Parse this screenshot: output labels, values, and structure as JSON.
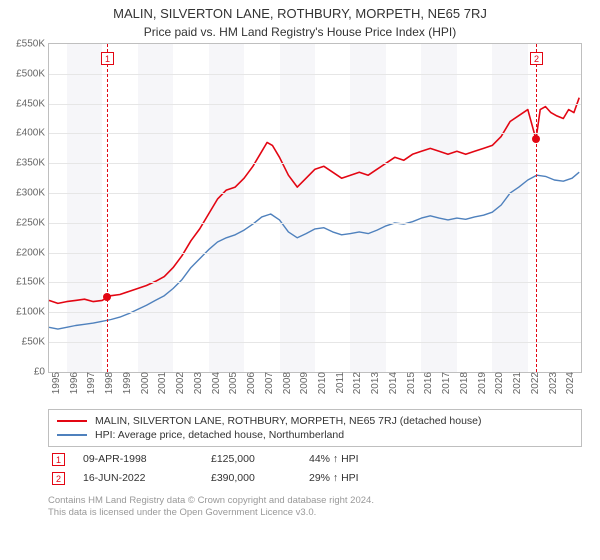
{
  "title": "MALIN, SILVERTON LANE, ROTHBURY, MORPETH, NE65 7RJ",
  "subtitle": "Price paid vs. HM Land Registry's House Price Index (HPI)",
  "title_fontsize": 13,
  "subtitle_fontsize": 12,
  "chart": {
    "type": "line",
    "background_color": "#ffffff",
    "plot_band_color": "#f6f6f9",
    "grid_color": "#e6e6e6",
    "axis_color": "#bfbfbf",
    "tick_label_color": "#666666",
    "tick_fontsize": 10,
    "x_years": [
      1995,
      1996,
      1997,
      1998,
      1999,
      2000,
      2001,
      2002,
      2003,
      2004,
      2005,
      2006,
      2007,
      2008,
      2009,
      2010,
      2011,
      2012,
      2013,
      2014,
      2015,
      2016,
      2017,
      2018,
      2019,
      2020,
      2021,
      2022,
      2023,
      2024
    ],
    "x_min": 1995,
    "x_max": 2025,
    "y_min": 0,
    "y_max": 550,
    "y_ticks": [
      0,
      50,
      100,
      150,
      200,
      250,
      300,
      350,
      400,
      450,
      500,
      550
    ],
    "y_tick_labels": [
      "£0",
      "£50K",
      "£100K",
      "£150K",
      "£200K",
      "£250K",
      "£300K",
      "£350K",
      "£400K",
      "£450K",
      "£500K",
      "£550K"
    ],
    "series": [
      {
        "name": "property",
        "label": "MALIN, SILVERTON LANE, ROTHBURY, MORPETH, NE65 7RJ (detached house)",
        "color": "#e30613",
        "line_width": 1.6,
        "points": [
          [
            1995.0,
            120
          ],
          [
            1995.5,
            115
          ],
          [
            1996.0,
            118
          ],
          [
            1996.5,
            120
          ],
          [
            1997.0,
            122
          ],
          [
            1997.5,
            118
          ],
          [
            1998.0,
            120
          ],
          [
            1998.27,
            125
          ],
          [
            1998.5,
            128
          ],
          [
            1999.0,
            130
          ],
          [
            1999.5,
            135
          ],
          [
            2000.0,
            140
          ],
          [
            2000.5,
            145
          ],
          [
            2001.0,
            152
          ],
          [
            2001.5,
            160
          ],
          [
            2002.0,
            175
          ],
          [
            2002.5,
            195
          ],
          [
            2003.0,
            220
          ],
          [
            2003.5,
            240
          ],
          [
            2004.0,
            265
          ],
          [
            2004.5,
            290
          ],
          [
            2005.0,
            305
          ],
          [
            2005.5,
            310
          ],
          [
            2006.0,
            325
          ],
          [
            2006.5,
            345
          ],
          [
            2007.0,
            370
          ],
          [
            2007.3,
            385
          ],
          [
            2007.6,
            380
          ],
          [
            2008.0,
            360
          ],
          [
            2008.5,
            330
          ],
          [
            2009.0,
            310
          ],
          [
            2009.5,
            325
          ],
          [
            2010.0,
            340
          ],
          [
            2010.5,
            345
          ],
          [
            2011.0,
            335
          ],
          [
            2011.5,
            325
          ],
          [
            2012.0,
            330
          ],
          [
            2012.5,
            335
          ],
          [
            2013.0,
            330
          ],
          [
            2013.5,
            340
          ],
          [
            2014.0,
            350
          ],
          [
            2014.5,
            360
          ],
          [
            2015.0,
            355
          ],
          [
            2015.5,
            365
          ],
          [
            2016.0,
            370
          ],
          [
            2016.5,
            375
          ],
          [
            2017.0,
            370
          ],
          [
            2017.5,
            365
          ],
          [
            2018.0,
            370
          ],
          [
            2018.5,
            365
          ],
          [
            2019.0,
            370
          ],
          [
            2019.5,
            375
          ],
          [
            2020.0,
            380
          ],
          [
            2020.5,
            395
          ],
          [
            2021.0,
            420
          ],
          [
            2021.5,
            430
          ],
          [
            2022.0,
            440
          ],
          [
            2022.46,
            390
          ],
          [
            2022.7,
            440
          ],
          [
            2023.0,
            445
          ],
          [
            2023.3,
            435
          ],
          [
            2023.6,
            430
          ],
          [
            2024.0,
            425
          ],
          [
            2024.3,
            440
          ],
          [
            2024.6,
            435
          ],
          [
            2024.9,
            460
          ]
        ]
      },
      {
        "name": "hpi",
        "label": "HPI: Average price, detached house, Northumberland",
        "color": "#4f81bd",
        "line_width": 1.4,
        "points": [
          [
            1995.0,
            75
          ],
          [
            1995.5,
            72
          ],
          [
            1996.0,
            75
          ],
          [
            1996.5,
            78
          ],
          [
            1997.0,
            80
          ],
          [
            1997.5,
            82
          ],
          [
            1998.0,
            85
          ],
          [
            1998.5,
            88
          ],
          [
            1999.0,
            92
          ],
          [
            1999.5,
            98
          ],
          [
            2000.0,
            105
          ],
          [
            2000.5,
            112
          ],
          [
            2001.0,
            120
          ],
          [
            2001.5,
            128
          ],
          [
            2002.0,
            140
          ],
          [
            2002.5,
            155
          ],
          [
            2003.0,
            175
          ],
          [
            2003.5,
            190
          ],
          [
            2004.0,
            205
          ],
          [
            2004.5,
            218
          ],
          [
            2005.0,
            225
          ],
          [
            2005.5,
            230
          ],
          [
            2006.0,
            238
          ],
          [
            2006.5,
            248
          ],
          [
            2007.0,
            260
          ],
          [
            2007.5,
            265
          ],
          [
            2008.0,
            255
          ],
          [
            2008.5,
            235
          ],
          [
            2009.0,
            225
          ],
          [
            2009.5,
            232
          ],
          [
            2010.0,
            240
          ],
          [
            2010.5,
            242
          ],
          [
            2011.0,
            235
          ],
          [
            2011.5,
            230
          ],
          [
            2012.0,
            232
          ],
          [
            2012.5,
            235
          ],
          [
            2013.0,
            232
          ],
          [
            2013.5,
            238
          ],
          [
            2014.0,
            245
          ],
          [
            2014.5,
            250
          ],
          [
            2015.0,
            248
          ],
          [
            2015.5,
            252
          ],
          [
            2016.0,
            258
          ],
          [
            2016.5,
            262
          ],
          [
            2017.0,
            258
          ],
          [
            2017.5,
            255
          ],
          [
            2018.0,
            258
          ],
          [
            2018.5,
            256
          ],
          [
            2019.0,
            260
          ],
          [
            2019.5,
            263
          ],
          [
            2020.0,
            268
          ],
          [
            2020.5,
            280
          ],
          [
            2021.0,
            300
          ],
          [
            2021.5,
            310
          ],
          [
            2022.0,
            322
          ],
          [
            2022.5,
            330
          ],
          [
            2023.0,
            328
          ],
          [
            2023.5,
            322
          ],
          [
            2024.0,
            320
          ],
          [
            2024.5,
            325
          ],
          [
            2024.9,
            335
          ]
        ]
      }
    ],
    "sale_markers": [
      {
        "index": "1",
        "x": 1998.27,
        "y": 125,
        "color": "#e30613"
      },
      {
        "index": "2",
        "x": 2022.46,
        "y": 390,
        "color": "#e30613"
      }
    ],
    "plot_bands": [
      {
        "from": 1996,
        "to": 1998
      },
      {
        "from": 2000,
        "to": 2002
      },
      {
        "from": 2004,
        "to": 2006
      },
      {
        "from": 2008,
        "to": 2010
      },
      {
        "from": 2012,
        "to": 2014
      },
      {
        "from": 2016,
        "to": 2018
      },
      {
        "from": 2020,
        "to": 2022
      }
    ]
  },
  "legend": {
    "border_color": "#bfbfbf",
    "fontsize": 10.5
  },
  "sales": [
    {
      "index": "1",
      "date": "09-APR-1998",
      "price": "£125,000",
      "hpi_diff": "44% ↑ HPI",
      "color": "#e30613"
    },
    {
      "index": "2",
      "date": "16-JUN-2022",
      "price": "£390,000",
      "hpi_diff": "29% ↑ HPI",
      "color": "#e30613"
    }
  ],
  "attribution": {
    "line1": "Contains HM Land Registry data © Crown copyright and database right 2024.",
    "line2": "This data is licensed under the Open Government Licence v3.0.",
    "color": "#999999",
    "fontsize": 9.5
  }
}
